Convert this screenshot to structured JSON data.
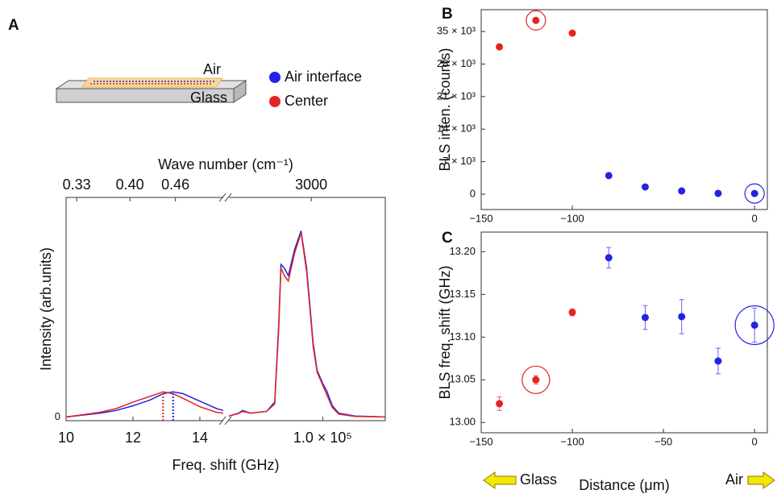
{
  "chart_data": [
    {
      "type": "line",
      "panel": "A",
      "schematic": {
        "top": "Air",
        "bottom": "Glass"
      },
      "series": [
        {
          "name": "Air interface",
          "color": "#2323e6"
        },
        {
          "name": "Center",
          "color": "#e62323"
        }
      ],
      "x2label": "Wave number (cm⁻¹)",
      "xlabel": "Freq. shift (GHz)",
      "ylabel": "Intensity (arb.units)",
      "ylim": [
        -0.02,
        1.18
      ],
      "yticks": [
        0
      ],
      "segments": [
        {
          "xlim": [
            10,
            14.7
          ],
          "xticks": [
            10,
            12,
            14
          ],
          "x2lim": [
            0.316,
            0.523
          ],
          "x2ticks": [
            0.33,
            {
              "value": 0.4,
              "label": "0.40"
            },
            0.46
          ],
          "x": [
            10,
            10.5,
            11,
            11.5,
            12,
            12.5,
            12.9,
            13.2,
            13.5,
            14,
            14.5,
            14.7
          ],
          "values": [
            [
              0,
              0.01,
              0.02,
              0.035,
              0.06,
              0.09,
              0.125,
              0.135,
              0.125,
              0.085,
              0.045,
              0.035
            ],
            [
              0,
              0.012,
              0.025,
              0.045,
              0.08,
              0.11,
              0.135,
              0.125,
              0.1,
              0.055,
              0.025,
              0.02
            ]
          ],
          "peaks": [
            {
              "x": 13.2,
              "y": 0.135
            },
            {
              "x": 12.9,
              "y": 0.135
            }
          ]
        },
        {
          "xlim": [
            58000,
            128000
          ],
          "xticks": [
            {
              "value": 100000,
              "label": "1.0 × 10⁵"
            }
          ],
          "x2lim": [
            2500,
            3450
          ],
          "x2ticks": [
            3000
          ],
          "x": [
            58000,
            62300,
            64100,
            67700,
            74900,
            78500,
            80300,
            81300,
            82800,
            84600,
            87400,
            90300,
            92800,
            95700,
            97500,
            100000,
            101800,
            104300,
            107200,
            114400,
            128000
          ],
          "values": [
            [
              0.005,
              0.02,
              0.035,
              0.02,
              0.03,
              0.08,
              0.5,
              0.82,
              0.8,
              0.76,
              0.9,
              1.0,
              0.8,
              0.4,
              0.25,
              0.18,
              0.14,
              0.06,
              0.02,
              0.005,
              0
            ],
            [
              0.005,
              0.018,
              0.03,
              0.02,
              0.03,
              0.07,
              0.47,
              0.8,
              0.76,
              0.73,
              0.88,
              0.99,
              0.78,
              0.38,
              0.24,
              0.17,
              0.12,
              0.05,
              0.015,
              0.003,
              0
            ]
          ]
        }
      ]
    },
    {
      "type": "scatter",
      "panel": "B",
      "ylabel": "BLS inten. (counts)",
      "xlim": [
        -150,
        7
      ],
      "xticks": [
        {
          "value": -150,
          "label": "−150"
        },
        {
          "value": -100,
          "label": "−100"
        },
        0
      ],
      "ylim": [
        -3300,
        39700
      ],
      "yticks": [
        0,
        {
          "value": 7000,
          "label": "7 × 10³"
        },
        {
          "value": 14000,
          "label": "14 × 10³"
        },
        {
          "value": 21000,
          "label": "21 × 10³"
        },
        {
          "value": 28000,
          "label": "28 × 10³"
        },
        {
          "value": 35000,
          "label": "35 × 10³"
        }
      ],
      "series": [
        {
          "color": "#e62323",
          "x": [
            -140,
            -120,
            -100
          ],
          "values": [
            31700,
            37400,
            34650
          ],
          "highlighted": [
            1
          ]
        },
        {
          "color": "#2323e6",
          "x": [
            -80,
            -60,
            -40,
            -20,
            0
          ],
          "values": [
            4000,
            1560,
            700,
            170,
            150
          ],
          "highlighted": [
            4
          ]
        }
      ]
    },
    {
      "type": "errorbar",
      "panel": "C",
      "ylabel": "BLS freq. shift (GHz)",
      "xlabel": "Distance (μm)",
      "direction_labels": {
        "left": "Glass",
        "right": "Air"
      },
      "xlim": [
        -150,
        7
      ],
      "xticks": [
        {
          "value": -150,
          "label": "−150"
        },
        {
          "value": -100,
          "label": "−100"
        },
        {
          "value": -50,
          "label": "−50"
        },
        0
      ],
      "ylim": [
        12.988,
        13.223
      ],
      "yticks": [
        {
          "value": 13,
          "label": "13.00"
        },
        13.05,
        {
          "value": 13.1,
          "label": "13.10"
        },
        13.15,
        {
          "value": 13.2,
          "label": "13.20"
        }
      ],
      "series": [
        {
          "color": "#e62323",
          "x": [
            -140,
            -120,
            -100
          ],
          "values": [
            13.022,
            13.05,
            13.129
          ],
          "errors": [
            0.008,
            0.005,
            0.004
          ],
          "highlighted": [
            1
          ]
        },
        {
          "color": "#2323e6",
          "x": [
            -80,
            -60,
            -40,
            -20,
            0
          ],
          "values": [
            13.193,
            13.123,
            13.124,
            13.072,
            13.114
          ],
          "errors": [
            0.012,
            0.014,
            0.02,
            0.015,
            0.02
          ],
          "highlighted": [
            4
          ]
        }
      ]
    }
  ]
}
